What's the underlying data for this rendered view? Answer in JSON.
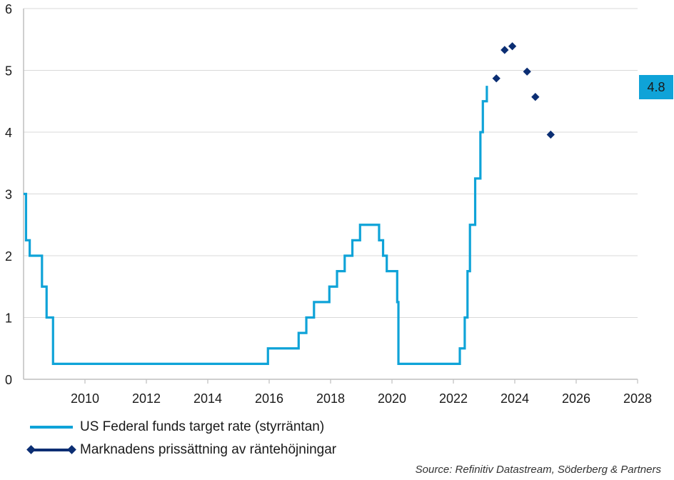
{
  "chart_data": {
    "type": "line",
    "xlim": [
      2008.0,
      2028.0
    ],
    "ylim": [
      0,
      6
    ],
    "xticks": [
      "2010",
      "2012",
      "2014",
      "2016",
      "2018",
      "2020",
      "2022",
      "2024",
      "2026",
      "2028"
    ],
    "yticks": [
      "0",
      "1",
      "2",
      "3",
      "4",
      "5",
      "6"
    ],
    "grid": true,
    "legend_position": "bottom-left",
    "series": [
      {
        "name": "US Federal funds target rate (styrräntan)",
        "style": "step",
        "color": "#0fa3d8",
        "x": [
          2008.0,
          2008.08,
          2008.2,
          2008.6,
          2008.75,
          2008.82,
          2008.96,
          2015.96,
          2016.96,
          2017.21,
          2017.46,
          2017.96,
          2018.21,
          2018.46,
          2018.71,
          2018.96,
          2019.58,
          2019.71,
          2019.83,
          2020.17,
          2020.21,
          2022.21,
          2022.37,
          2022.46,
          2022.54,
          2022.71,
          2022.88,
          2022.96,
          2023.09
        ],
        "y": [
          3.0,
          2.25,
          2.0,
          1.5,
          1.0,
          1.0,
          0.25,
          0.5,
          0.75,
          1.0,
          1.25,
          1.5,
          1.75,
          2.0,
          2.25,
          2.5,
          2.25,
          2.0,
          1.75,
          1.25,
          0.25,
          0.5,
          1.0,
          1.75,
          2.5,
          3.25,
          4.0,
          4.5,
          4.75
        ]
      },
      {
        "name": "Marknadens prissättning av räntehöjningar",
        "style": "markers",
        "color": "#0b2e73",
        "x": [
          2023.4,
          2023.67,
          2023.92,
          2024.4,
          2024.67,
          2025.17
        ],
        "y": [
          4.87,
          5.33,
          5.39,
          4.98,
          4.57,
          3.96
        ]
      }
    ],
    "value_label": "4.8",
    "source": "Source: Refinitiv Datastream, Söderberg & Partners"
  }
}
